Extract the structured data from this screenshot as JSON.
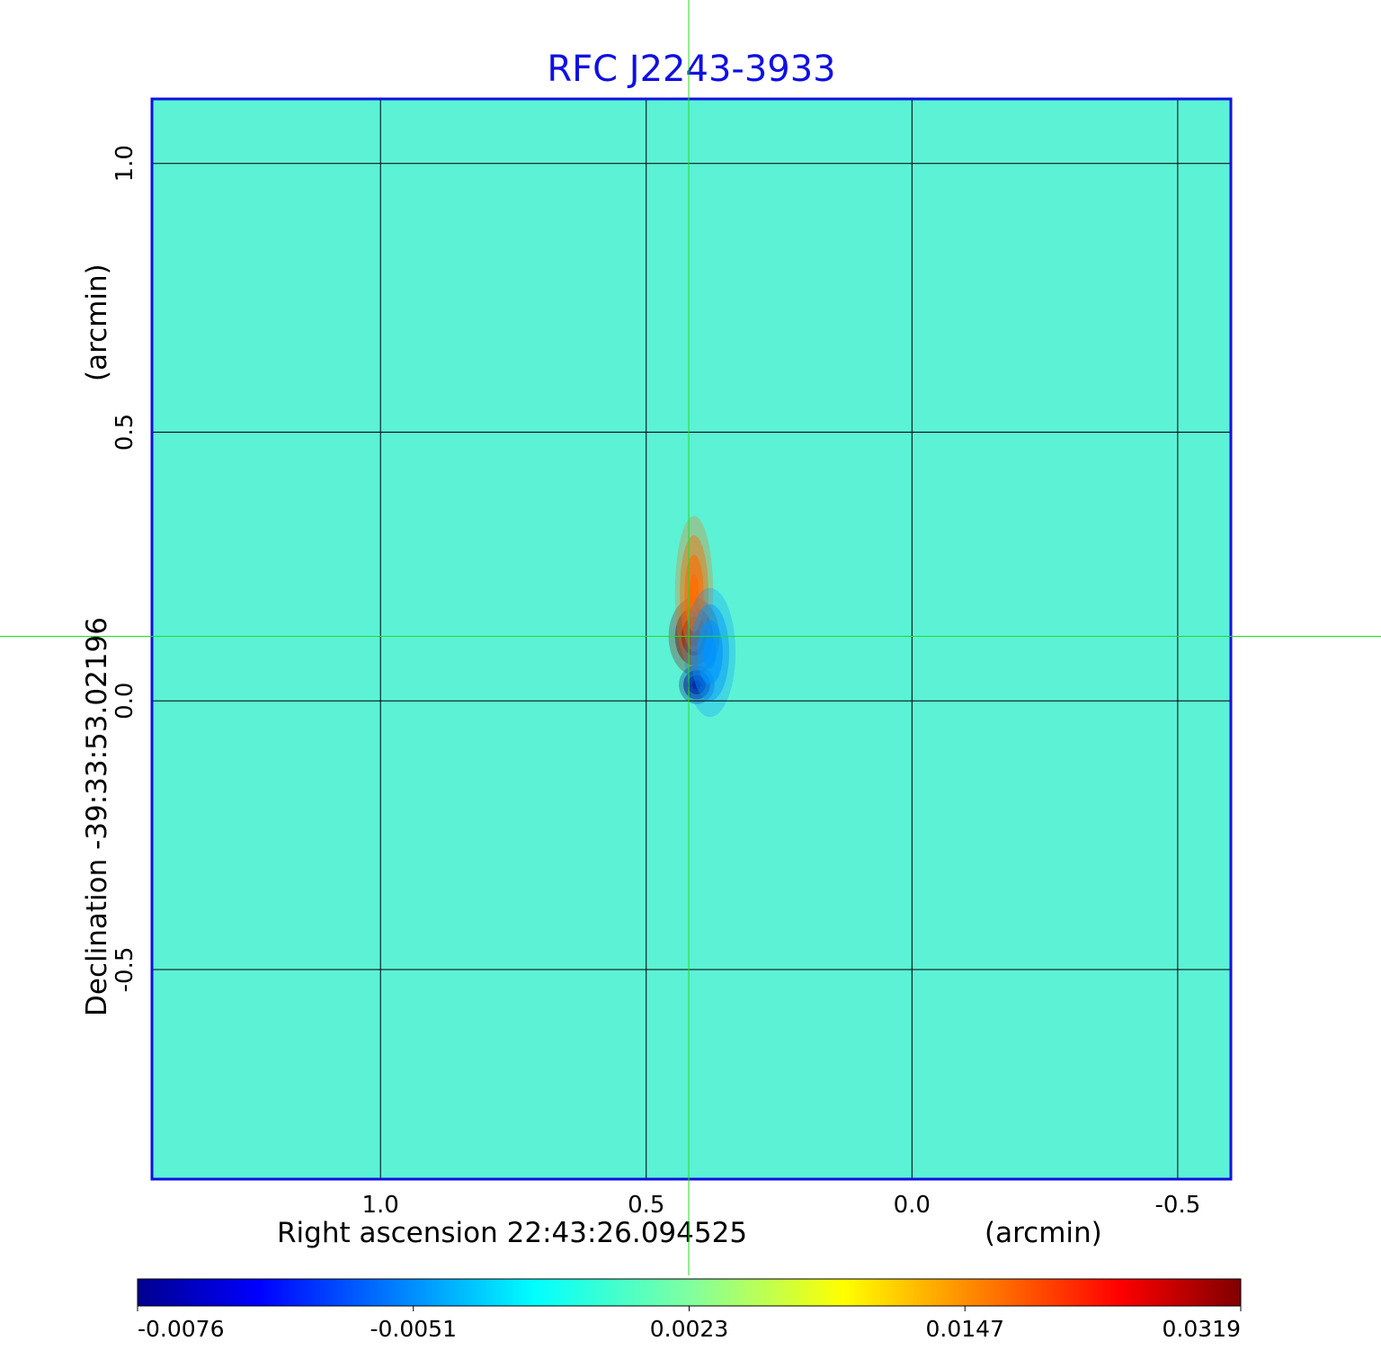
{
  "chart_data": {
    "type": "heatmap",
    "title": "RFC J2243-3933",
    "xlabel": "Right ascension  22:43:26.094525",
    "xunit": "(arcmin)",
    "ylabel": "Declination  -39:33:53.02196",
    "yunit": "(arcmin)",
    "xlim": [
      1.43,
      -0.6
    ],
    "ylim": [
      -0.89,
      1.12
    ],
    "x_ticks": [
      {
        "value": 1.0,
        "label": "1.0"
      },
      {
        "value": 0.5,
        "label": "0.5"
      },
      {
        "value": 0.0,
        "label": "0.0"
      },
      {
        "value": -0.5,
        "label": "-0.5"
      }
    ],
    "y_ticks": [
      {
        "value": 1.0,
        "label": "1.0"
      },
      {
        "value": 0.5,
        "label": "0.5"
      },
      {
        "value": 0.0,
        "label": "0.0"
      },
      {
        "value": -0.5,
        "label": "-0.5"
      }
    ],
    "grid": true,
    "crosshair": {
      "x": 0.42,
      "y": 0.12,
      "color": "#22dd22"
    },
    "features": [
      {
        "x": 0.41,
        "y": 0.12,
        "value": 0.0319,
        "sigma_x": 0.02,
        "sigma_y": 0.03
      },
      {
        "x": 0.41,
        "y": 0.2,
        "value": 0.016,
        "sigma_x": 0.015,
        "sigma_y": 0.06
      },
      {
        "x": 0.405,
        "y": 0.03,
        "value": -0.0076,
        "sigma_x": 0.014,
        "sigma_y": 0.015
      },
      {
        "x": 0.38,
        "y": 0.09,
        "value": -0.0045,
        "sigma_x": 0.02,
        "sigma_y": 0.05
      }
    ],
    "colorbar": {
      "colormap": "jet",
      "ticks": [
        {
          "value": -0.0076,
          "label": "-0.0076"
        },
        {
          "value": -0.0051,
          "label": "-0.0051"
        },
        {
          "value": 0.0023,
          "label": "0.0023"
        },
        {
          "value": 0.0147,
          "label": "0.0147"
        },
        {
          "value": 0.0319,
          "label": "0.0319"
        }
      ]
    },
    "colors": {
      "title": "#1010e0",
      "frame": "#1010e0",
      "background": "#5cf2d6"
    }
  }
}
